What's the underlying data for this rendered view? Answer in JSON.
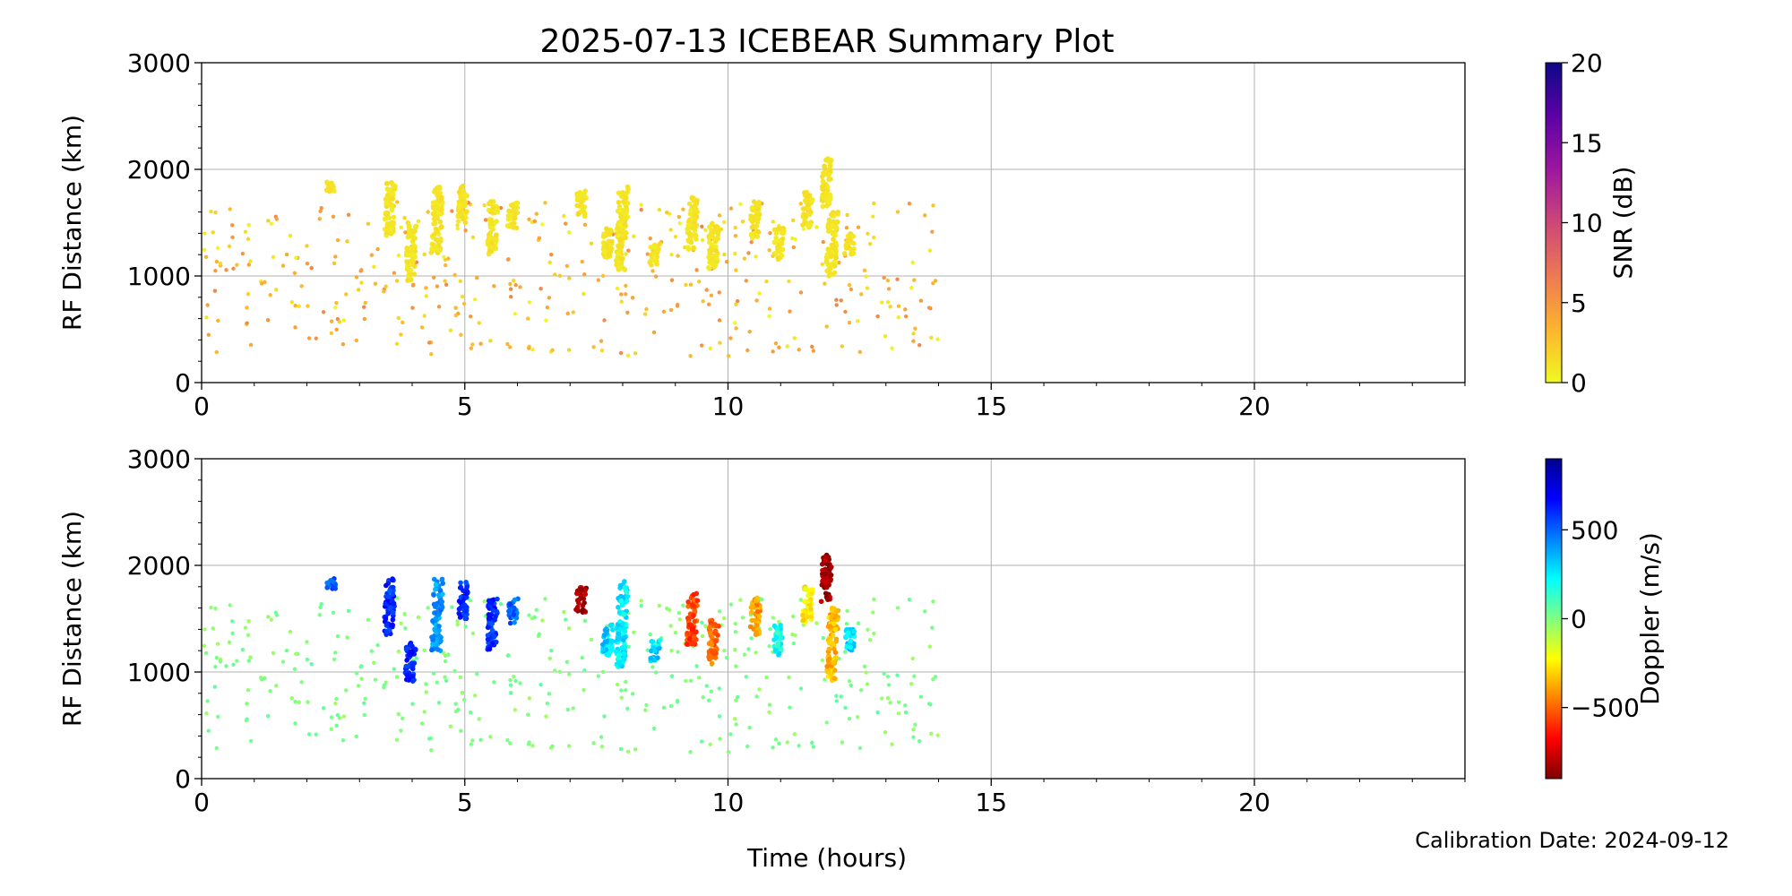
{
  "title": "2025-07-13 ICEBEAR Summary Plot",
  "footer_note": "Calibration Date: 2024-09-12",
  "shared_xlabel": "Time (hours)",
  "chart_data": [
    {
      "type": "scatter",
      "name": "snr-panel",
      "ylabel": "RF Distance (km)",
      "xlim": [
        0,
        24
      ],
      "ylim": [
        0,
        3000
      ],
      "x_ticks": [
        0,
        5,
        10,
        15,
        20
      ],
      "x_tick_labels": [
        "0",
        "5",
        "10",
        "15",
        "20"
      ],
      "y_ticks": [
        0,
        1000,
        2000,
        3000
      ],
      "y_tick_labels": [
        "0",
        "1000",
        "2000",
        "3000"
      ],
      "grid": true,
      "colorbar": {
        "label": "SNR (dB)",
        "min": 0,
        "max": 20,
        "ticks": [
          0,
          5,
          10,
          15,
          20
        ],
        "tick_labels": [
          "0",
          "5",
          "10",
          "15",
          "20"
        ],
        "colormap": "plasma_r",
        "stops": [
          "#f0f921",
          "#fdb42f",
          "#ed7953",
          "#cc4778",
          "#9c179e",
          "#5c01a6",
          "#0d0887"
        ]
      },
      "clusters": [
        {
          "x": 2.45,
          "y0": 1780,
          "y1": 1880,
          "v": 1
        },
        {
          "x": 3.55,
          "y0": 1350,
          "y1": 1880,
          "v": 1
        },
        {
          "x": 3.95,
          "y0": 950,
          "y1": 1500,
          "v": 1
        },
        {
          "x": 4.45,
          "y0": 1200,
          "y1": 1880,
          "v": 1
        },
        {
          "x": 4.95,
          "y0": 1500,
          "y1": 1850,
          "v": 1
        },
        {
          "x": 5.5,
          "y0": 1200,
          "y1": 1700,
          "v": 1
        },
        {
          "x": 5.9,
          "y0": 1450,
          "y1": 1700,
          "v": 1
        },
        {
          "x": 7.2,
          "y0": 1550,
          "y1": 1800,
          "v": 1
        },
        {
          "x": 7.7,
          "y0": 1150,
          "y1": 1450,
          "v": 1
        },
        {
          "x": 7.95,
          "y0": 1050,
          "y1": 1850,
          "v": 1
        },
        {
          "x": 8.6,
          "y0": 1100,
          "y1": 1300,
          "v": 1
        },
        {
          "x": 9.3,
          "y0": 1250,
          "y1": 1750,
          "v": 1
        },
        {
          "x": 9.7,
          "y0": 1050,
          "y1": 1500,
          "v": 1
        },
        {
          "x": 10.5,
          "y0": 1350,
          "y1": 1700,
          "v": 1
        },
        {
          "x": 10.95,
          "y0": 1150,
          "y1": 1450,
          "v": 1
        },
        {
          "x": 11.5,
          "y0": 1450,
          "y1": 1800,
          "v": 1
        },
        {
          "x": 11.85,
          "y0": 1650,
          "y1": 2100,
          "v": 1
        },
        {
          "x": 11.95,
          "y0": 1000,
          "y1": 1600,
          "v": 1
        },
        {
          "x": 12.3,
          "y0": 1200,
          "y1": 1400,
          "v": 1
        }
      ],
      "scatter_region": {
        "x0": 0,
        "x1": 14,
        "y0": 250,
        "y1": 1700,
        "count": 420,
        "v_min": 0,
        "v_max": 6
      }
    },
    {
      "type": "scatter",
      "name": "doppler-panel",
      "ylabel": "RF Distance (km)",
      "xlabel": "Time (hours)",
      "xlim": [
        0,
        24
      ],
      "ylim": [
        0,
        3000
      ],
      "x_ticks": [
        0,
        5,
        10,
        15,
        20
      ],
      "x_tick_labels": [
        "0",
        "5",
        "10",
        "15",
        "20"
      ],
      "y_ticks": [
        0,
        1000,
        2000,
        3000
      ],
      "y_tick_labels": [
        "0",
        "1000",
        "2000",
        "3000"
      ],
      "grid": true,
      "colorbar": {
        "label": "Doppler (m/s)",
        "min": -900,
        "max": 900,
        "ticks": [
          -500,
          0,
          500
        ],
        "tick_labels": [
          "−500",
          "0",
          "500"
        ],
        "colormap": "jet",
        "stops": [
          "#7f0000",
          "#ff0000",
          "#ff8000",
          "#ffff00",
          "#80ff80",
          "#00ffff",
          "#0080ff",
          "#0000ff",
          "#00008f"
        ]
      },
      "clusters": [
        {
          "x": 2.45,
          "y0": 1780,
          "y1": 1880,
          "v": 500
        },
        {
          "x": 3.55,
          "y0": 1350,
          "y1": 1880,
          "v": 600
        },
        {
          "x": 3.95,
          "y0": 900,
          "y1": 1300,
          "v": 620
        },
        {
          "x": 4.45,
          "y0": 1200,
          "y1": 1880,
          "v": 420
        },
        {
          "x": 4.95,
          "y0": 1500,
          "y1": 1850,
          "v": 600
        },
        {
          "x": 5.5,
          "y0": 1200,
          "y1": 1700,
          "v": 600
        },
        {
          "x": 5.9,
          "y0": 1450,
          "y1": 1700,
          "v": 500
        },
        {
          "x": 7.2,
          "y0": 1550,
          "y1": 1800,
          "v": -850
        },
        {
          "x": 7.7,
          "y0": 1150,
          "y1": 1450,
          "v": 300
        },
        {
          "x": 7.95,
          "y0": 1050,
          "y1": 1850,
          "v": 250
        },
        {
          "x": 8.6,
          "y0": 1100,
          "y1": 1300,
          "v": 300
        },
        {
          "x": 9.3,
          "y0": 1250,
          "y1": 1750,
          "v": -550
        },
        {
          "x": 9.7,
          "y0": 1050,
          "y1": 1500,
          "v": -500
        },
        {
          "x": 10.5,
          "y0": 1350,
          "y1": 1700,
          "v": -400
        },
        {
          "x": 10.95,
          "y0": 1150,
          "y1": 1450,
          "v": 200
        },
        {
          "x": 11.5,
          "y0": 1450,
          "y1": 1800,
          "v": -250
        },
        {
          "x": 11.85,
          "y0": 1650,
          "y1": 2100,
          "v": -850
        },
        {
          "x": 11.95,
          "y0": 900,
          "y1": 1600,
          "v": -350
        },
        {
          "x": 12.3,
          "y0": 1200,
          "y1": 1400,
          "v": 300
        }
      ],
      "scatter_region": {
        "x0": 0,
        "x1": 14,
        "y0": 250,
        "y1": 1700,
        "count": 420,
        "v_min": -60,
        "v_max": 60
      }
    }
  ]
}
